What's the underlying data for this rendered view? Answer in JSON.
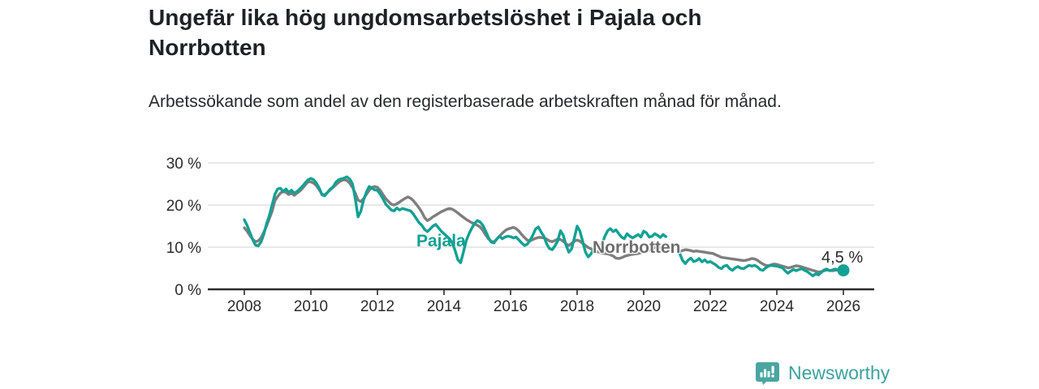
{
  "chart_data": {
    "type": "line",
    "title": "Ungefär lika hög ungdomsarbetslöshet i Pajala och Norrbotten",
    "subtitle": "Arbetssökande som andel av den registerbaserade arbetskraften månad för månad.",
    "grid": true,
    "legend_position": "inline-labels",
    "x_axis": {
      "ticks": [
        2008,
        2010,
        2012,
        2014,
        2016,
        2018,
        2020,
        2022,
        2024,
        2026
      ],
      "tick_labels": [
        "2008",
        "2010",
        "2012",
        "2014",
        "2016",
        "2018",
        "2020",
        "2022",
        "2024",
        "2026"
      ],
      "range": [
        2007.8,
        2026.9
      ]
    },
    "y_axis": {
      "ticks": [
        0,
        10,
        20,
        30
      ],
      "tick_labels": [
        "0 %",
        "10 %",
        "20 %",
        "30 %"
      ],
      "range": [
        0,
        32
      ],
      "unit": "%"
    },
    "series": [
      {
        "name": "Pajala",
        "inline_label": "Pajala",
        "color": "#12A193",
        "end_dot": true,
        "end_label": "4,5 %",
        "segments": [
          {
            "start_year": 2008,
            "start_month": 1,
            "values": [
              16.5,
              15.2,
              13.5,
              11.8,
              10.5,
              10.3,
              11.2,
              13.0,
              15.5,
              17.5,
              20.0,
              22.5,
              23.8,
              24.0,
              23.2,
              23.8,
              23.0,
              23.5,
              22.8,
              23.2,
              23.8,
              24.5,
              25.3,
              26.0,
              26.3,
              26.0,
              25.2,
              24.0,
              22.4,
              22.2,
              23.0,
              23.8,
              24.3,
              25.4,
              26.0,
              26.2,
              26.4,
              26.7,
              26.2,
              25.0,
              21.5,
              17.2,
              18.5,
              21.2,
              23.0,
              24.4,
              24.0,
              23.6,
              23.5,
              22.6,
              21.5,
              20.2,
              19.5,
              18.8,
              18.6,
              19.3,
              18.8,
              19.2,
              19.0,
              18.8,
              18.6,
              17.8,
              16.8,
              15.8,
              15.2,
              14.2,
              13.7,
              14.3,
              15.0,
              15.4,
              14.6,
              13.8,
              13.2,
              12.6,
              12.0,
              11.0,
              9.2,
              7.0,
              6.3,
              8.8,
              11.5,
              13.2,
              14.5,
              15.6,
              16.3,
              16.0,
              15.2,
              13.8,
              12.3,
              11.2,
              11.0,
              11.9,
              12.6,
              12.0,
              12.4,
              12.6,
              12.5,
              12.2,
              12.4,
              11.7,
              11.0,
              10.4,
              10.7,
              11.6,
              12.8,
              14.3,
              14.8,
              13.6,
              12.6,
              10.8,
              9.7,
              9.4,
              10.3,
              11.5,
              13.9,
              12.8,
              10.5,
              8.8,
              9.6,
              12.2,
              15.0,
              13.8,
              11.4,
              8.8,
              7.7,
              8.4,
              9.6,
              10.5,
              10.0,
              10.8,
              12.6,
              13.9,
              14.4,
              13.7,
              14.1,
              13.2,
              12.4,
              12.0,
              13.2,
              12.6,
              12.2,
              12.6,
              13.0,
              12.4,
              13.8,
              13.4,
              12.4,
              12.6,
              13.2,
              12.8,
              12.3,
              13.0,
              12.5
            ]
          },
          {
            "start_year": 2021,
            "start_month": 2,
            "values": [
              8.5,
              6.9,
              6.1,
              6.9,
              7.4,
              6.6,
              6.8,
              7.3,
              6.5,
              7.0,
              6.4,
              6.6,
              6.2,
              5.8,
              5.2,
              4.9,
              5.5,
              5.7,
              4.9,
              4.5,
              5.1,
              5.4,
              5.0,
              4.9,
              5.3,
              5.7,
              5.5,
              5.7,
              5.3,
              4.7,
              4.5,
              5.1,
              5.5,
              5.7,
              5.6,
              5.5,
              5.3,
              5.1,
              4.4,
              3.8,
              4.3,
              4.7,
              4.4,
              4.7,
              4.9,
              4.5,
              4.2,
              3.7,
              3.2,
              3.7,
              3.4,
              4.0,
              4.6,
              4.8,
              4.4,
              4.6,
              4.8,
              4.6,
              4.5,
              4.5
            ]
          }
        ]
      },
      {
        "name": "Norrbotten",
        "inline_label": "Norrbotten",
        "color": "#7E7E7E",
        "end_dot": false,
        "segments": [
          {
            "start_year": 2008,
            "start_month": 1,
            "values": [
              14.6,
              13.8,
              12.8,
              11.9,
              11.3,
              11.5,
              12.2,
              13.5,
              15.0,
              16.8,
              18.5,
              21.0,
              22.0,
              22.8,
              23.2,
              23.0,
              22.5,
              22.8,
              22.3,
              22.8,
              23.3,
              24.0,
              24.8,
              25.5,
              25.5,
              25.2,
              24.6,
              23.6,
              22.6,
              22.4,
              23.0,
              23.6,
              24.2,
              24.8,
              25.4,
              25.8,
              26.0,
              25.8,
              25.2,
              24.2,
              22.8,
              21.2,
              20.8,
              21.5,
              22.5,
              23.5,
              24.2,
              24.4,
              24.2,
              23.5,
              22.5,
              21.5,
              20.8,
              20.2,
              20.0,
              20.3,
              20.7,
              21.2,
              21.6,
              21.9,
              21.6,
              21.0,
              20.2,
              19.3,
              18.3,
              17.0,
              16.3,
              16.7,
              17.2,
              17.6,
              18.0,
              18.4,
              18.7,
              19.0,
              19.2,
              19.0,
              18.6,
              18.1,
              17.6,
              17.1,
              16.6,
              16.2,
              15.8,
              15.5,
              15.2,
              14.8,
              14.0,
              12.9,
              12.0,
              11.4,
              11.2,
              11.9,
              12.6,
              13.3,
              13.9,
              14.3,
              14.5,
              14.7,
              14.4,
              13.8,
              13.0,
              12.3,
              11.7,
              11.5,
              11.8,
              12.1,
              12.3,
              12.3,
              12.2,
              11.9,
              11.5,
              11.3,
              11.6,
              11.9,
              11.8,
              11.4,
              10.8,
              10.4,
              10.9,
              11.4,
              11.7,
              11.4,
              10.9,
              10.4,
              9.9,
              9.6,
              9.3,
              9.0,
              8.8,
              8.6,
              8.5,
              8.4,
              8.2,
              7.9,
              7.4,
              7.3,
              7.5,
              7.8,
              8.0,
              8.2,
              8.3,
              8.4,
              8.5,
              8.7,
              8.9,
              9.0,
              9.3,
              9.7,
              9.9,
              10.0,
              9.9,
              9.8,
              9.6
            ]
          },
          {
            "start_year": 2021,
            "start_month": 2,
            "values": [
              9.0,
              9.2,
              9.4,
              9.3,
              9.2,
              9.0,
              9.1,
              9.0,
              8.9,
              8.8,
              8.7,
              8.6,
              8.5,
              8.2,
              7.9,
              7.6,
              7.5,
              7.4,
              7.3,
              7.2,
              7.1,
              7.0,
              6.9,
              6.8,
              6.9,
              7.1,
              7.3,
              7.2,
              6.9,
              6.4,
              6.0,
              5.7,
              5.6,
              5.8,
              6.0,
              5.9,
              5.7,
              5.5,
              5.3,
              5.1,
              5.2,
              5.4,
              5.6,
              5.5,
              5.3,
              5.1,
              4.9,
              4.7,
              4.5,
              4.3,
              4.1,
              4.2,
              4.4,
              4.6,
              4.5,
              4.4,
              4.5,
              4.6,
              4.6
            ]
          }
        ]
      }
    ]
  },
  "colors": {
    "pajala": "#12A193",
    "norrbotten_label": "#6D6D6D",
    "axis": "#2b2b2b",
    "tick_text": "#2b2b2b",
    "gridline": "#d9d9d9",
    "brand_teal": "#4AA5A1"
  },
  "footer": {
    "brand": "Newsworthy"
  }
}
